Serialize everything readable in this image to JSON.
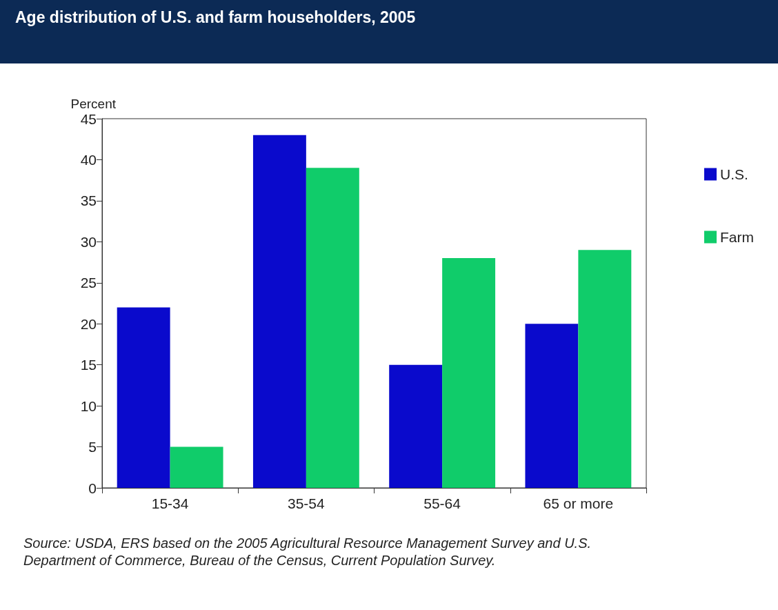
{
  "chart_data": {
    "type": "bar",
    "title": "Age distribution of U.S. and farm householders, 2005",
    "ylabel": "Percent",
    "categories": [
      "15-34",
      "35-54",
      "55-64",
      "65 or more"
    ],
    "series": [
      {
        "name": "U.S.",
        "color": "#0a0acc",
        "values": [
          22,
          43,
          15,
          20
        ]
      },
      {
        "name": "Farm",
        "color": "#10cc6a",
        "values": [
          5,
          39,
          28,
          29
        ]
      }
    ],
    "ylim": [
      0,
      45
    ],
    "yticks": [
      0,
      5,
      10,
      15,
      20,
      25,
      30,
      35,
      40,
      45
    ],
    "grid": false,
    "legend": "right",
    "annotations": [
      "Source: USDA, ERS based on the 2005 Agricultural Resource Management Survey and U.S. Department of Commerce, Bureau of the Census, Current Population Survey."
    ]
  }
}
